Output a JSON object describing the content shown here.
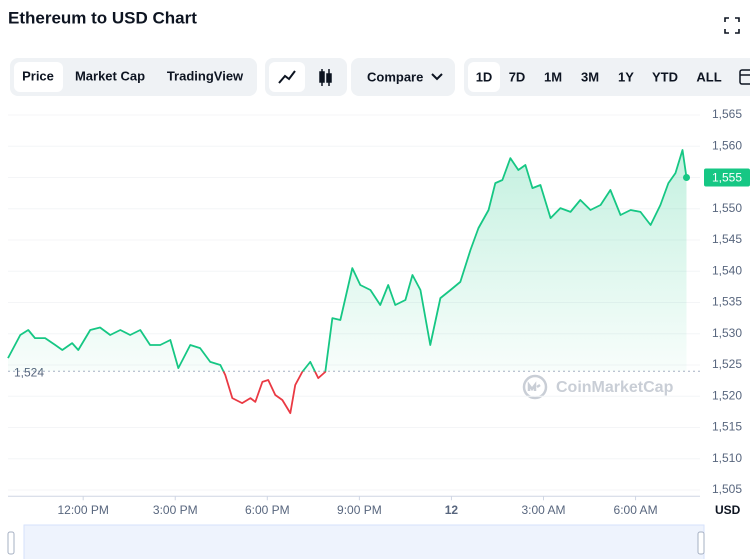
{
  "header": {
    "title": "Ethereum to USD Chart"
  },
  "controls": {
    "tabs": [
      "Price",
      "Market Cap",
      "TradingView"
    ],
    "compare": "Compare",
    "ranges": [
      "1D",
      "7D",
      "1M",
      "3M",
      "1Y",
      "YTD",
      "ALL"
    ]
  },
  "chart_data": {
    "type": "line",
    "watermark": "CoinMarketCap",
    "y_unit": "USD",
    "x": [
      -2.45,
      -2.05,
      -1.79,
      -1.57,
      -1.24,
      -0.91,
      -0.68,
      -0.36,
      -0.16,
      0.23,
      0.55,
      0.88,
      1.21,
      1.53,
      1.86,
      2.18,
      2.51,
      2.84,
      3.1,
      3.49,
      3.81,
      4.14,
      4.47,
      4.63,
      4.86,
      5.18,
      5.45,
      5.61,
      5.84,
      6.03,
      6.26,
      6.49,
      6.75,
      6.91,
      7.14,
      7.4,
      7.66,
      7.89,
      8.12,
      8.38,
      8.77,
      9.03,
      9.36,
      9.68,
      9.94,
      10.17,
      10.5,
      10.73,
      10.99,
      11.31,
      11.64,
      11.97,
      12.29,
      12.62,
      12.88,
      13.21,
      13.43,
      13.66,
      13.92,
      14.18,
      14.41,
      14.64,
      14.9,
      15.23,
      15.55,
      15.88,
      16.2,
      16.53,
      16.86,
      17.18,
      17.51,
      17.84,
      18.16,
      18.49,
      18.81,
      19.07,
      19.3,
      19.53,
      19.66
    ],
    "values": [
      1526.1,
      1529.8,
      1530.6,
      1529.3,
      1529.3,
      1528.2,
      1527.4,
      1528.5,
      1527.4,
      1530.6,
      1531,
      1529.8,
      1530.6,
      1529.8,
      1530.6,
      1528.2,
      1528.2,
      1529,
      1524.5,
      1528.2,
      1527.7,
      1525.5,
      1525,
      1523.4,
      1519.7,
      1518.9,
      1519.7,
      1519.1,
      1522.3,
      1522.6,
      1520.2,
      1519.4,
      1517.3,
      1521.8,
      1523.9,
      1525.5,
      1522.9,
      1523.9,
      1532.5,
      1532.2,
      1540.5,
      1537.8,
      1537,
      1534.6,
      1537.8,
      1534.6,
      1535.4,
      1539.4,
      1537,
      1528.2,
      1535.7,
      1537,
      1538.3,
      1543.4,
      1546.9,
      1549.8,
      1554.1,
      1554.6,
      1558.1,
      1556.2,
      1557,
      1553.3,
      1553.8,
      1548.5,
      1550.1,
      1549.5,
      1551.4,
      1549.8,
      1550.6,
      1553,
      1549,
      1549.8,
      1549.5,
      1547.4,
      1550.6,
      1554.1,
      1555.7,
      1559.4,
      1555
    ],
    "up_color": "#16c784",
    "down_color": "#ea3943",
    "baseline": {
      "value": 1524,
      "label": "1,524"
    },
    "current": {
      "value": 1555,
      "label": "1,555"
    },
    "xlim": [
      -2.45,
      20.1
    ],
    "xticks": [
      {
        "value": 0,
        "label": "12:00 PM"
      },
      {
        "value": 3,
        "label": "3:00 PM"
      },
      {
        "value": 6,
        "label": "6:00 PM"
      },
      {
        "value": 9,
        "label": "9:00 PM"
      },
      12,
      {
        "value": 15,
        "label": "3:00 AM"
      },
      {
        "value": 18,
        "label": "6:00 AM"
      }
    ],
    "ylim": [
      1504,
      1567
    ],
    "yticks": [
      {
        "value": 1505,
        "label": "1,505"
      },
      {
        "value": 1510,
        "label": "1,510"
      },
      {
        "value": 1515,
        "label": "1,515"
      },
      {
        "value": 1520,
        "label": "1,520"
      },
      {
        "value": 1525,
        "label": "1,525"
      },
      {
        "value": 1530,
        "label": "1,530"
      },
      {
        "value": 1535,
        "label": "1,535"
      },
      {
        "value": 1540,
        "label": "1,540"
      },
      {
        "value": 1545,
        "label": "1,545"
      },
      {
        "value": 1550,
        "label": "1,550"
      },
      {
        "value": 1555,
        "label": "1,555"
      },
      {
        "value": 1560,
        "label": "1,560"
      },
      {
        "value": 1565,
        "label": "1,565"
      }
    ],
    "grid": true
  }
}
